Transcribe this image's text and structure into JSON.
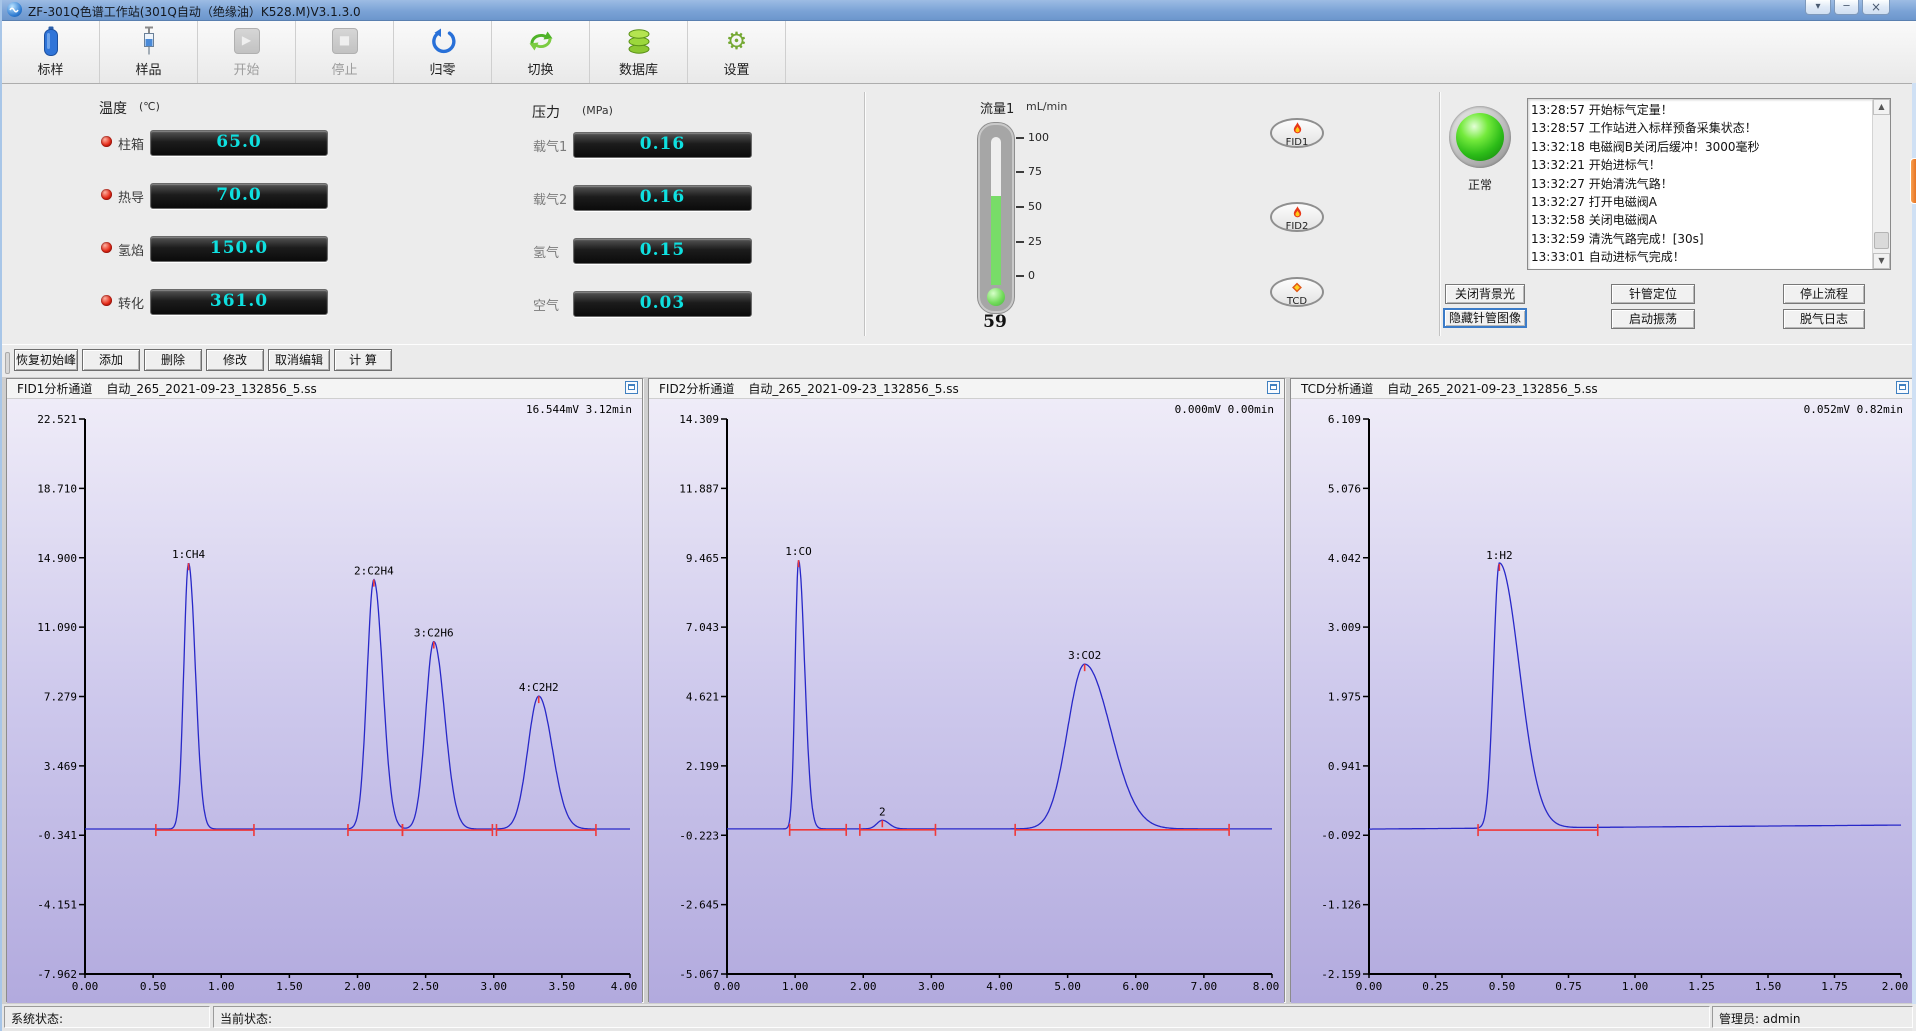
{
  "window": {
    "title": "ZF-301Q色谱工作站(301Q自动（绝缘油）K528.M)V3.1.3.0",
    "controls": {
      "menu": "▾",
      "minimize": "─",
      "close": "×"
    }
  },
  "toolbar": {
    "buttons": [
      {
        "label": "标样",
        "icon": "gas-cylinder",
        "enabled": true
      },
      {
        "label": "样品",
        "icon": "syringe",
        "enabled": true
      },
      {
        "label": "开始",
        "icon": "play",
        "enabled": false
      },
      {
        "label": "停止",
        "icon": "stop",
        "enabled": false
      },
      {
        "label": "归零",
        "icon": "zero-circular-arrow",
        "enabled": true
      },
      {
        "label": "切换",
        "icon": "switch-arrows",
        "enabled": true
      },
      {
        "label": "数据库",
        "icon": "database",
        "enabled": true
      },
      {
        "label": "设置",
        "icon": "gear",
        "enabled": true
      }
    ],
    "gear_glyph": "⚙",
    "play_glyph": "▶",
    "stop_glyph": "■"
  },
  "temperature": {
    "title": "温度",
    "unit": "(℃)",
    "rows": [
      {
        "label": "柱箱",
        "value": "65.0"
      },
      {
        "label": "热导",
        "value": "70.0"
      },
      {
        "label": "氢焰",
        "value": "150.0"
      },
      {
        "label": "转化",
        "value": "361.0"
      }
    ]
  },
  "pressure": {
    "title": "压力",
    "unit": "(MPa)",
    "rows": [
      {
        "label": "载气1",
        "value": "0.16"
      },
      {
        "label": "载气2",
        "value": "0.16"
      },
      {
        "label": "氢气",
        "value": "0.15"
      },
      {
        "label": "空气",
        "value": "0.03"
      }
    ]
  },
  "flow": {
    "title": "流量1",
    "unit": "mL/min",
    "value": "59",
    "value_percent": 59,
    "ticks": [
      "100",
      "75",
      "50",
      "25",
      "0"
    ]
  },
  "detectors": [
    {
      "label": "FID1",
      "icon": "flame"
    },
    {
      "label": "FID2",
      "icon": "flame"
    },
    {
      "label": "TCD",
      "icon": "diamond"
    }
  ],
  "status_panel": {
    "state_label": "正常",
    "log_lines": [
      "13:28:57 开始标气定量！",
      "13:28:57 工作站进入标样预备采集状态！",
      "13:32:18 电磁阀B关闭后缓冲！3000毫秒",
      "13:32:21 开始进标气！",
      "13:32:27 开始清洗气路！",
      "13:32:27 打开电磁阀A",
      "13:32:58 关闭电磁阀A",
      "13:32:59 清洗气路完成！[30s]",
      "13:33:01 自动进标气完成！"
    ]
  },
  "action_buttons": {
    "row1": [
      "关闭背景光",
      "针管定位",
      "停止流程"
    ],
    "row2": [
      "隐藏针管图像",
      "启动振荡",
      "脱气日志"
    ],
    "focused": "隐藏针管图像"
  },
  "edit_toolbar": {
    "buttons": [
      "恢复初始峰",
      "添加",
      "删除",
      "修改",
      "取消编辑",
      "计 算"
    ]
  },
  "status_bar": {
    "system_label": "系统状态:",
    "current_label": "当前状态:",
    "admin_label": "管理员: admin"
  },
  "colors": {
    "accent_blue": "#3c7cc8",
    "lcd_text": "#0fe0e0",
    "curve_blue": "#2828c8",
    "integration_red": "#f03838",
    "chart_bg_top": "#efecf8",
    "chart_bg_bottom": "#b2aade",
    "led_red": "#e62b18",
    "led_green": "#2cbc18",
    "gauge_fill": "#78dc68"
  },
  "chart_data": [
    {
      "type": "line",
      "detector": "FID1",
      "title": "FID1分析通道",
      "file": "自动_265_2021-09-23_132856_5.ss",
      "cursor_reading": "16.544mV 3.12min",
      "xlim": [
        0,
        4
      ],
      "xtick_step": 0.5,
      "yticks": [
        22.521,
        18.71,
        14.9,
        11.09,
        7.279,
        3.469,
        -0.341,
        -4.151,
        -7.962
      ],
      "baseline_mv": 0,
      "drift_mv": 0,
      "peaks": [
        {
          "label": "1:CH4",
          "rt_min": 0.76,
          "height_mv": 14.6,
          "sigma_l": 0.035,
          "sigma_r": 0.05
        },
        {
          "label": "2:C2H4",
          "rt_min": 2.12,
          "height_mv": 13.7,
          "sigma_l": 0.05,
          "sigma_r": 0.065
        },
        {
          "label": "3:C2H6",
          "rt_min": 2.56,
          "height_mv": 10.3,
          "sigma_l": 0.06,
          "sigma_r": 0.08
        },
        {
          "label": "4:C2H2",
          "rt_min": 3.33,
          "height_mv": 7.3,
          "sigma_l": 0.08,
          "sigma_r": 0.1
        }
      ],
      "integration_marks_min": [
        [
          0.52,
          1.24
        ],
        [
          1.93,
          2.33
        ],
        [
          2.33,
          2.99
        ],
        [
          3.02,
          3.75
        ]
      ]
    },
    {
      "type": "line",
      "detector": "FID2",
      "title": "FID2分析通道",
      "file": "自动_265_2021-09-23_132856_5.ss",
      "cursor_reading": "0.000mV 0.00min",
      "xlim": [
        0,
        8
      ],
      "xtick_step": 1,
      "yticks": [
        14.309,
        11.887,
        9.465,
        7.043,
        4.621,
        2.199,
        -0.223,
        -2.645,
        -5.067
      ],
      "baseline_mv": 0,
      "drift_mv": 0,
      "peaks": [
        {
          "label": "1:CO",
          "rt_min": 1.05,
          "height_mv": 9.38,
          "sigma_l": 0.05,
          "sigma_r": 0.09
        },
        {
          "label": "2",
          "rt_min": 2.28,
          "height_mv": 0.3,
          "sigma_l": 0.08,
          "sigma_r": 0.1
        },
        {
          "label": "3:CO2",
          "rt_min": 5.25,
          "height_mv": 5.75,
          "sigma_l": 0.25,
          "sigma_r": 0.38
        }
      ],
      "integration_marks_min": [
        [
          0.92,
          1.75
        ],
        [
          1.95,
          3.06
        ],
        [
          4.23,
          7.37
        ]
      ]
    },
    {
      "type": "line",
      "detector": "TCD",
      "title": "TCD分析通道",
      "file": "自动_265_2021-09-23_132856_5.ss",
      "cursor_reading": "0.052mV 0.82min",
      "xlim": [
        0,
        2
      ],
      "xtick_step": 0.25,
      "yticks": [
        6.109,
        5.076,
        4.042,
        3.009,
        1.975,
        0.941,
        -0.092,
        -1.126,
        -2.159
      ],
      "baseline_mv": 0,
      "drift_mv": 0.06,
      "peaks": [
        {
          "label": "1:H2",
          "rt_min": 0.49,
          "height_mv": 3.95,
          "sigma_l": 0.022,
          "sigma_r": 0.075
        }
      ],
      "integration_marks_min": [
        [
          0.41,
          0.86
        ]
      ]
    }
  ]
}
